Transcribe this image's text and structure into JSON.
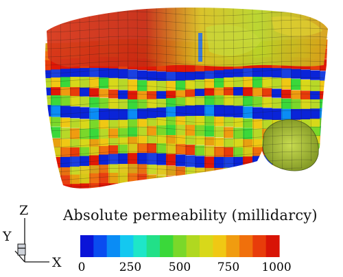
{
  "legend": {
    "title": "Absolute permeability (millidarcy)",
    "ticks": [
      "0",
      "250",
      "500",
      "750",
      "1000"
    ],
    "range": [
      0,
      1000
    ],
    "colors": [
      "#0a14d8",
      "#0a4cf0",
      "#0a8cf5",
      "#14c8f0",
      "#1ee6c8",
      "#22e088",
      "#3ad83a",
      "#7ad82a",
      "#b0d820",
      "#d8d81a",
      "#f0c814",
      "#f09c10",
      "#f0700c",
      "#e83c0a",
      "#d81406"
    ]
  },
  "axes": {
    "z": "Z",
    "y": "Y",
    "x": "X"
  }
}
